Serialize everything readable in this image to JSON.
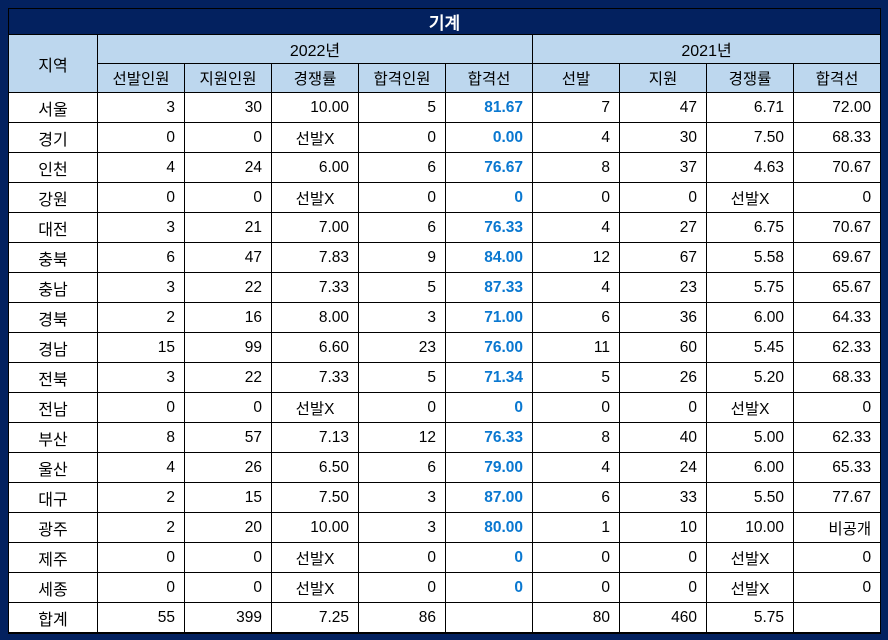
{
  "title": "기계",
  "colors": {
    "navy_background": "#03215f",
    "header_fill": "#bdd7ee",
    "cutoff_text_blue": "#0a78d0",
    "grid_border": "#000000",
    "title_text": "#ffffff"
  },
  "chart_data": {
    "type": "table",
    "title": "기계",
    "header": {
      "region": "지역",
      "group_2022": "2022년",
      "group_2021": "2021년",
      "sub": [
        "선발인원",
        "지원인원",
        "경쟁률",
        "합격인원",
        "합격선",
        "선발",
        "지원",
        "경쟁률",
        "합격선"
      ]
    },
    "rows": [
      [
        "서울",
        "3",
        "30",
        "10.00",
        "5",
        "81.67",
        "7",
        "47",
        "6.71",
        "72.00"
      ],
      [
        "경기",
        "0",
        "0",
        "선발X",
        "0",
        "0.00",
        "4",
        "30",
        "7.50",
        "68.33"
      ],
      [
        "인천",
        "4",
        "24",
        "6.00",
        "6",
        "76.67",
        "8",
        "37",
        "4.63",
        "70.67"
      ],
      [
        "강원",
        "0",
        "0",
        "선발X",
        "0",
        "0",
        "0",
        "0",
        "선발X",
        "0"
      ],
      [
        "대전",
        "3",
        "21",
        "7.00",
        "6",
        "76.33",
        "4",
        "27",
        "6.75",
        "70.67"
      ],
      [
        "충북",
        "6",
        "47",
        "7.83",
        "9",
        "84.00",
        "12",
        "67",
        "5.58",
        "69.67"
      ],
      [
        "충남",
        "3",
        "22",
        "7.33",
        "5",
        "87.33",
        "4",
        "23",
        "5.75",
        "65.67"
      ],
      [
        "경북",
        "2",
        "16",
        "8.00",
        "3",
        "71.00",
        "6",
        "36",
        "6.00",
        "64.33"
      ],
      [
        "경남",
        "15",
        "99",
        "6.60",
        "23",
        "76.00",
        "11",
        "60",
        "5.45",
        "62.33"
      ],
      [
        "전북",
        "3",
        "22",
        "7.33",
        "5",
        "71.34",
        "5",
        "26",
        "5.20",
        "68.33"
      ],
      [
        "전남",
        "0",
        "0",
        "선발X",
        "0",
        "0",
        "0",
        "0",
        "선발X",
        "0"
      ],
      [
        "부산",
        "8",
        "57",
        "7.13",
        "12",
        "76.33",
        "8",
        "40",
        "5.00",
        "62.33"
      ],
      [
        "울산",
        "4",
        "26",
        "6.50",
        "6",
        "79.00",
        "4",
        "24",
        "6.00",
        "65.33"
      ],
      [
        "대구",
        "2",
        "15",
        "7.50",
        "3",
        "87.00",
        "6",
        "33",
        "5.50",
        "77.67"
      ],
      [
        "광주",
        "2",
        "20",
        "10.00",
        "3",
        "80.00",
        "1",
        "10",
        "10.00",
        "비공개"
      ],
      [
        "제주",
        "0",
        "0",
        "선발X",
        "0",
        "0",
        "0",
        "0",
        "선발X",
        "0"
      ],
      [
        "세종",
        "0",
        "0",
        "선발X",
        "0",
        "0",
        "0",
        "0",
        "선발X",
        "0"
      ],
      [
        "합계",
        "55",
        "399",
        "7.25",
        "86",
        "",
        "80",
        "460",
        "5.75",
        ""
      ]
    ]
  }
}
